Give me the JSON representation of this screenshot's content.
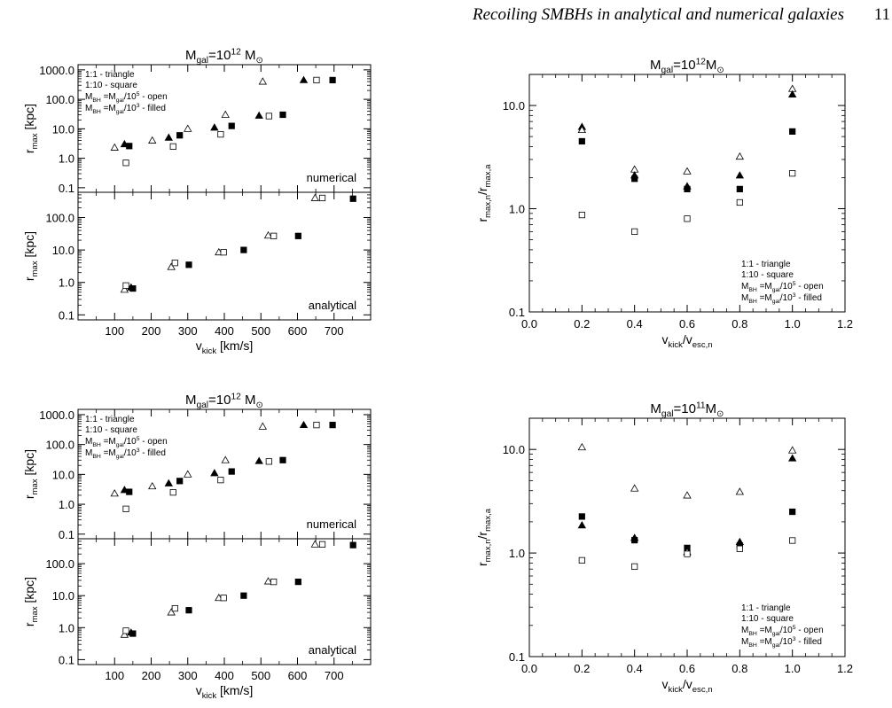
{
  "header": {
    "running_title": "Recoiling SMBHs in analytical and numerical galaxies",
    "page_number": "11"
  },
  "chart_data": [
    {
      "id": "top-left",
      "type": "scatter",
      "title_parts": [
        "M",
        "gal",
        "=10",
        "12",
        " M",
        "⊙"
      ],
      "xlabel_parts": [
        "v",
        "kick",
        " [km/s]"
      ],
      "xticks": [
        "100",
        "200",
        "300",
        "400",
        "500",
        "600",
        "700"
      ],
      "xlim": [
        0,
        800
      ],
      "legend": [
        "1:1 - triangle",
        "1:10 - square",
        "M_BH =M_gal/10^5 - open",
        "M_BH =M_gal/10^3 - filled"
      ],
      "panels": [
        {
          "name": "numerical",
          "ylabel_parts": [
            "r",
            "max",
            " [kpc]"
          ],
          "yscale": "log",
          "ylim": [
            0.07,
            1500
          ],
          "yticks": [
            "0.1",
            "1.0",
            "10.0",
            "100.0",
            "1000.0"
          ],
          "points": [
            {
              "x": 100,
              "y": 2.3,
              "marker": "triangle-open"
            },
            {
              "x": 127,
              "y": 3.0,
              "marker": "triangle-filled"
            },
            {
              "x": 131,
              "y": 0.7,
              "marker": "square-open"
            },
            {
              "x": 140,
              "y": 2.6,
              "marker": "square-filled"
            },
            {
              "x": 203,
              "y": 4.0,
              "marker": "triangle-open"
            },
            {
              "x": 248,
              "y": 5.0,
              "marker": "triangle-filled"
            },
            {
              "x": 260,
              "y": 2.5,
              "marker": "square-open"
            },
            {
              "x": 278,
              "y": 6.0,
              "marker": "square-filled"
            },
            {
              "x": 300,
              "y": 10.0,
              "marker": "triangle-open"
            },
            {
              "x": 373,
              "y": 11.0,
              "marker": "triangle-filled"
            },
            {
              "x": 390,
              "y": 6.5,
              "marker": "square-open"
            },
            {
              "x": 403,
              "y": 30.0,
              "marker": "triangle-open"
            },
            {
              "x": 420,
              "y": 12.5,
              "marker": "square-filled"
            },
            {
              "x": 495,
              "y": 28.0,
              "marker": "triangle-filled"
            },
            {
              "x": 505,
              "y": 400.0,
              "marker": "triangle-open"
            },
            {
              "x": 522,
              "y": 27.0,
              "marker": "square-open"
            },
            {
              "x": 560,
              "y": 30.0,
              "marker": "square-filled"
            },
            {
              "x": 617,
              "y": 450.0,
              "marker": "triangle-filled"
            },
            {
              "x": 652,
              "y": 450.0,
              "marker": "square-open"
            },
            {
              "x": 696,
              "y": 450.0,
              "marker": "square-filled"
            }
          ]
        },
        {
          "name": "analytical",
          "ylabel_parts": [
            "r",
            "max",
            " [kpc]"
          ],
          "yscale": "log",
          "ylim": [
            0.07,
            600
          ],
          "yticks": [
            "0.1",
            "1.0",
            "10.0",
            "100.0"
          ],
          "points": [
            {
              "x": 127,
              "y": 0.6,
              "marker": "triangle-open"
            },
            {
              "x": 131,
              "y": 0.8,
              "marker": "square-open"
            },
            {
              "x": 145,
              "y": 0.7,
              "marker": "triangle-filled"
            },
            {
              "x": 150,
              "y": 0.65,
              "marker": "square-filled"
            },
            {
              "x": 255,
              "y": 3.0,
              "marker": "triangle-open"
            },
            {
              "x": 265,
              "y": 4.0,
              "marker": "square-open"
            },
            {
              "x": 303,
              "y": 3.5,
              "marker": "square-filled"
            },
            {
              "x": 385,
              "y": 8.5,
              "marker": "triangle-open"
            },
            {
              "x": 398,
              "y": 8.5,
              "marker": "square-open"
            },
            {
              "x": 453,
              "y": 10.0,
              "marker": "square-filled"
            },
            {
              "x": 520,
              "y": 28.0,
              "marker": "triangle-open"
            },
            {
              "x": 535,
              "y": 27.0,
              "marker": "square-open"
            },
            {
              "x": 602,
              "y": 27.0,
              "marker": "square-filled"
            },
            {
              "x": 648,
              "y": 400.0,
              "marker": "triangle-open"
            },
            {
              "x": 668,
              "y": 400.0,
              "marker": "square-open"
            },
            {
              "x": 752,
              "y": 380.0,
              "marker": "square-filled"
            }
          ]
        }
      ]
    },
    {
      "id": "top-right",
      "type": "scatter",
      "title_parts": [
        "M",
        "gal",
        "=10",
        "12",
        "M",
        "⊙"
      ],
      "xlabel_parts": [
        "v",
        "kick",
        "/v",
        "esc,n"
      ],
      "ylabel_parts": [
        "r",
        "max,n",
        "/r",
        "max,a"
      ],
      "xticks": [
        "0.0",
        "0.2",
        "0.4",
        "0.6",
        "0.8",
        "1.0",
        "1.2"
      ],
      "xlim": [
        0,
        1.2
      ],
      "yscale": "log",
      "ylim": [
        0.1,
        20
      ],
      "yticks": [
        "0.1",
        "1.0",
        "10.0"
      ],
      "legend": [
        "1:1 - triangle",
        "1:10 - square",
        "M_BH =M_gal/10^5 - open",
        "M_BH =M_gal/10^3 - filled"
      ],
      "points": [
        {
          "x": 0.2,
          "y": 6.2,
          "marker": "triangle-filled"
        },
        {
          "x": 0.2,
          "y": 5.8,
          "marker": "triangle-open"
        },
        {
          "x": 0.2,
          "y": 4.5,
          "marker": "square-filled"
        },
        {
          "x": 0.2,
          "y": 0.87,
          "marker": "square-open"
        },
        {
          "x": 0.4,
          "y": 2.4,
          "marker": "triangle-open"
        },
        {
          "x": 0.4,
          "y": 2.1,
          "marker": "triangle-filled"
        },
        {
          "x": 0.4,
          "y": 1.95,
          "marker": "square-filled"
        },
        {
          "x": 0.4,
          "y": 0.6,
          "marker": "square-open"
        },
        {
          "x": 0.6,
          "y": 2.3,
          "marker": "triangle-open"
        },
        {
          "x": 0.6,
          "y": 1.65,
          "marker": "triangle-filled"
        },
        {
          "x": 0.6,
          "y": 1.55,
          "marker": "square-filled"
        },
        {
          "x": 0.6,
          "y": 0.8,
          "marker": "square-open"
        },
        {
          "x": 0.8,
          "y": 3.2,
          "marker": "triangle-open"
        },
        {
          "x": 0.8,
          "y": 2.1,
          "marker": "triangle-filled"
        },
        {
          "x": 0.8,
          "y": 1.55,
          "marker": "square-filled"
        },
        {
          "x": 0.8,
          "y": 1.15,
          "marker": "square-open"
        },
        {
          "x": 1.0,
          "y": 14.5,
          "marker": "triangle-open"
        },
        {
          "x": 1.0,
          "y": 12.8,
          "marker": "triangle-filled"
        },
        {
          "x": 1.0,
          "y": 5.6,
          "marker": "square-filled"
        },
        {
          "x": 1.0,
          "y": 2.2,
          "marker": "square-open"
        }
      ]
    },
    {
      "id": "bottom-left",
      "type": "scatter",
      "title_parts": [
        "M",
        "gal",
        "=10",
        "12",
        " M",
        "⊙"
      ],
      "xlabel_parts": [
        "v",
        "kick",
        " [km/s]"
      ],
      "xticks": [
        "100",
        "200",
        "300",
        "400",
        "500",
        "600",
        "700"
      ],
      "xlim": [
        0,
        800
      ],
      "legend": [
        "1:1 - triangle",
        "1:10 - square",
        "M_BH =M_gal/10^5 - open",
        "M_BH =M_gal/10^3 - filled"
      ],
      "panels": [
        {
          "name": "numerical",
          "ylabel_parts": [
            "r",
            "max",
            " [kpc]"
          ],
          "yscale": "log",
          "ylim": [
            0.07,
            1500
          ],
          "yticks": [
            "0.1",
            "1.0",
            "10.0",
            "100.0",
            "1000.0"
          ],
          "points": [
            {
              "x": 100,
              "y": 2.3,
              "marker": "triangle-open"
            },
            {
              "x": 127,
              "y": 3.0,
              "marker": "triangle-filled"
            },
            {
              "x": 131,
              "y": 0.7,
              "marker": "square-open"
            },
            {
              "x": 140,
              "y": 2.6,
              "marker": "square-filled"
            },
            {
              "x": 203,
              "y": 4.0,
              "marker": "triangle-open"
            },
            {
              "x": 248,
              "y": 5.0,
              "marker": "triangle-filled"
            },
            {
              "x": 260,
              "y": 2.5,
              "marker": "square-open"
            },
            {
              "x": 278,
              "y": 6.0,
              "marker": "square-filled"
            },
            {
              "x": 300,
              "y": 10.0,
              "marker": "triangle-open"
            },
            {
              "x": 373,
              "y": 11.0,
              "marker": "triangle-filled"
            },
            {
              "x": 390,
              "y": 6.5,
              "marker": "square-open"
            },
            {
              "x": 403,
              "y": 30.0,
              "marker": "triangle-open"
            },
            {
              "x": 420,
              "y": 12.5,
              "marker": "square-filled"
            },
            {
              "x": 495,
              "y": 28.0,
              "marker": "triangle-filled"
            },
            {
              "x": 505,
              "y": 400.0,
              "marker": "triangle-open"
            },
            {
              "x": 522,
              "y": 27.0,
              "marker": "square-open"
            },
            {
              "x": 560,
              "y": 30.0,
              "marker": "square-filled"
            },
            {
              "x": 617,
              "y": 450.0,
              "marker": "triangle-filled"
            },
            {
              "x": 652,
              "y": 450.0,
              "marker": "square-open"
            },
            {
              "x": 696,
              "y": 450.0,
              "marker": "square-filled"
            }
          ]
        },
        {
          "name": "analytical",
          "ylabel_parts": [
            "r",
            "max",
            " [kpc]"
          ],
          "yscale": "log",
          "ylim": [
            0.07,
            600
          ],
          "yticks": [
            "0.1",
            "1.0",
            "10.0",
            "100.0"
          ],
          "points": [
            {
              "x": 127,
              "y": 0.6,
              "marker": "triangle-open"
            },
            {
              "x": 131,
              "y": 0.8,
              "marker": "square-open"
            },
            {
              "x": 145,
              "y": 0.7,
              "marker": "triangle-filled"
            },
            {
              "x": 150,
              "y": 0.65,
              "marker": "square-filled"
            },
            {
              "x": 255,
              "y": 3.0,
              "marker": "triangle-open"
            },
            {
              "x": 265,
              "y": 4.0,
              "marker": "square-open"
            },
            {
              "x": 303,
              "y": 3.5,
              "marker": "square-filled"
            },
            {
              "x": 385,
              "y": 8.5,
              "marker": "triangle-open"
            },
            {
              "x": 398,
              "y": 8.5,
              "marker": "square-open"
            },
            {
              "x": 453,
              "y": 10.0,
              "marker": "square-filled"
            },
            {
              "x": 520,
              "y": 28.0,
              "marker": "triangle-open"
            },
            {
              "x": 535,
              "y": 27.0,
              "marker": "square-open"
            },
            {
              "x": 602,
              "y": 27.0,
              "marker": "square-filled"
            },
            {
              "x": 648,
              "y": 400.0,
              "marker": "triangle-open"
            },
            {
              "x": 668,
              "y": 400.0,
              "marker": "square-open"
            },
            {
              "x": 752,
              "y": 380.0,
              "marker": "square-filled"
            }
          ]
        }
      ]
    },
    {
      "id": "bottom-right",
      "type": "scatter",
      "title_parts": [
        "M",
        "gal",
        "=10",
        "11",
        "M",
        "⊙"
      ],
      "xlabel_parts": [
        "v",
        "kick",
        "/v",
        "esc,n"
      ],
      "ylabel_parts": [
        "r",
        "max,n",
        "/r",
        "max,a"
      ],
      "xticks": [
        "0.0",
        "0.2",
        "0.4",
        "0.6",
        "0.8",
        "1.0",
        "1.2"
      ],
      "xlim": [
        0,
        1.2
      ],
      "yscale": "log",
      "ylim": [
        0.1,
        20
      ],
      "yticks": [
        "0.1",
        "1.0",
        "10.0"
      ],
      "legend": [
        "1:1 - triangle",
        "1:10 - square",
        "M_BH =M_gal/10^5 - open",
        "M_BH =M_gal/10^3 - filled"
      ],
      "points": [
        {
          "x": 0.2,
          "y": 10.5,
          "marker": "triangle-open"
        },
        {
          "x": 0.2,
          "y": 2.25,
          "marker": "square-filled"
        },
        {
          "x": 0.2,
          "y": 1.85,
          "marker": "triangle-filled"
        },
        {
          "x": 0.2,
          "y": 0.85,
          "marker": "square-open"
        },
        {
          "x": 0.4,
          "y": 4.2,
          "marker": "triangle-open"
        },
        {
          "x": 0.4,
          "y": 1.4,
          "marker": "triangle-filled"
        },
        {
          "x": 0.4,
          "y": 1.33,
          "marker": "square-filled"
        },
        {
          "x": 0.4,
          "y": 0.74,
          "marker": "square-open"
        },
        {
          "x": 0.6,
          "y": 3.6,
          "marker": "triangle-open"
        },
        {
          "x": 0.6,
          "y": 1.12,
          "marker": "square-filled"
        },
        {
          "x": 0.6,
          "y": 1.02,
          "marker": "triangle-open"
        },
        {
          "x": 0.6,
          "y": 0.98,
          "marker": "square-open"
        },
        {
          "x": 0.8,
          "y": 3.9,
          "marker": "triangle-open"
        },
        {
          "x": 0.8,
          "y": 1.28,
          "marker": "triangle-filled"
        },
        {
          "x": 0.8,
          "y": 1.18,
          "marker": "square-filled"
        },
        {
          "x": 0.8,
          "y": 1.1,
          "marker": "square-open"
        },
        {
          "x": 1.0,
          "y": 9.8,
          "marker": "triangle-open"
        },
        {
          "x": 1.0,
          "y": 8.2,
          "marker": "triangle-filled"
        },
        {
          "x": 1.0,
          "y": 2.5,
          "marker": "square-filled"
        },
        {
          "x": 1.0,
          "y": 1.32,
          "marker": "square-open"
        }
      ]
    }
  ]
}
